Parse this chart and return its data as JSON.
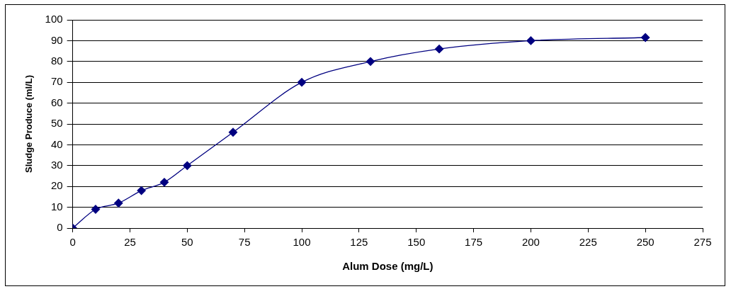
{
  "chart_data": {
    "type": "line",
    "xlabel": "Alum Dose (mg/L)",
    "ylabel": "Sludge Produce (ml/L)",
    "x": [
      0,
      10,
      20,
      30,
      40,
      50,
      70,
      100,
      130,
      160,
      200,
      250
    ],
    "series": [
      {
        "color": "#000080",
        "values": [
          0,
          9,
          12,
          18,
          22,
          30,
          46,
          70,
          80,
          86,
          90,
          91.5
        ]
      }
    ],
    "xlim": [
      0,
      275
    ],
    "xticks": [
      0,
      25,
      50,
      75,
      100,
      125,
      150,
      175,
      200,
      225,
      250,
      275
    ],
    "ylim": [
      0,
      100
    ],
    "yticks": [
      0,
      10,
      20,
      30,
      40,
      50,
      60,
      70,
      80,
      90,
      100
    ],
    "grid": "y",
    "legend": false,
    "marker": "diamond",
    "line_style": "solid"
  }
}
